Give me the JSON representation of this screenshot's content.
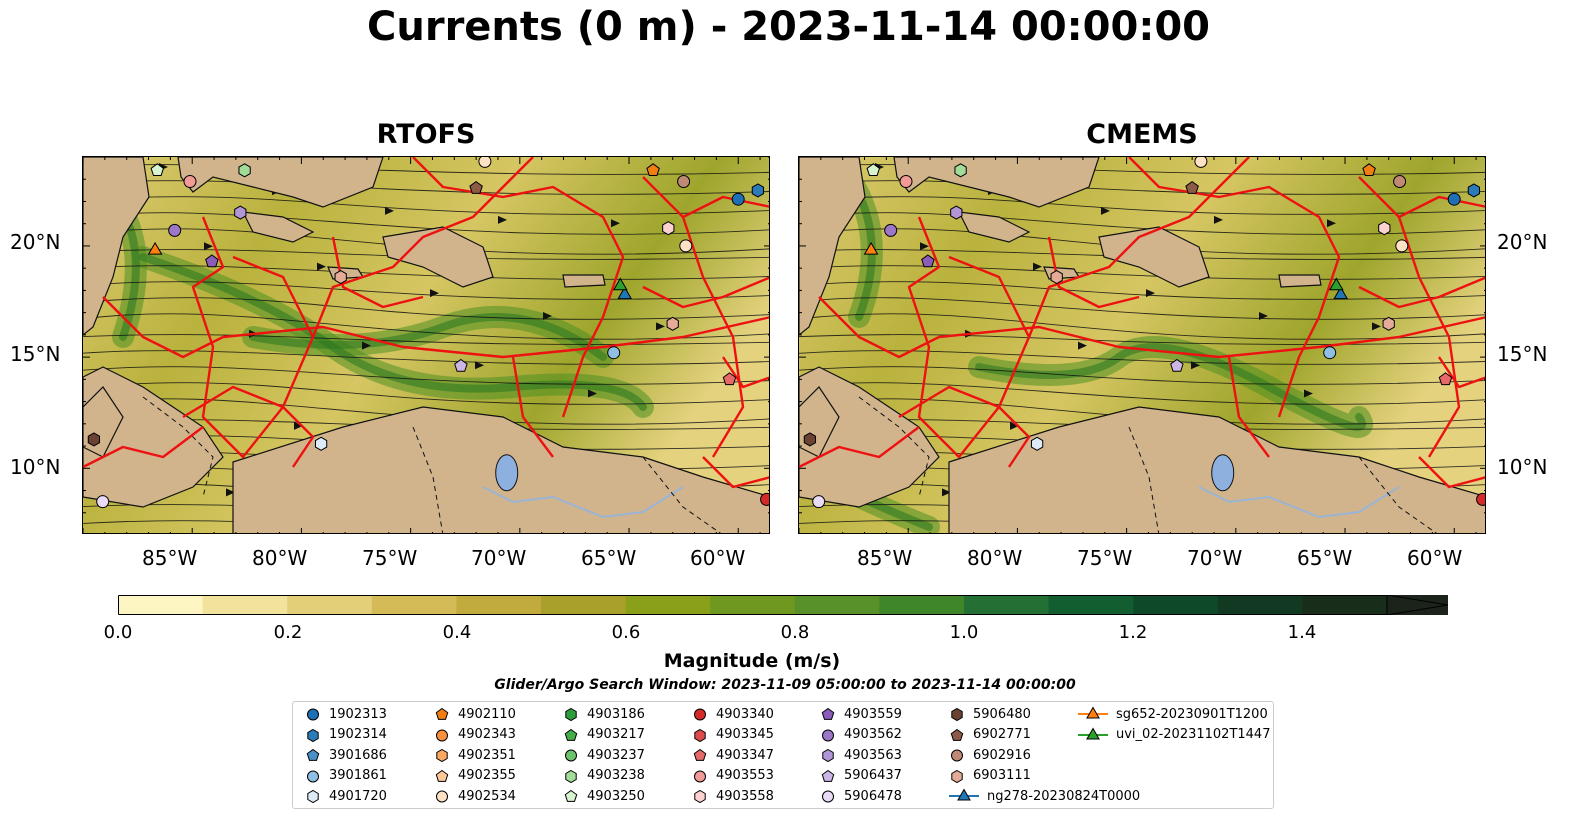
{
  "title": "Currents (0 m) - 2023-11-14 00:00:00",
  "panels": [
    {
      "title": "RTOFS"
    },
    {
      "title": "CMEMS"
    }
  ],
  "lat_ticks": [
    "20°N",
    "15°N",
    "10°N"
  ],
  "lon_ticks": [
    "85°W",
    "80°W",
    "75°W",
    "70°W",
    "65°W",
    "60°W"
  ],
  "colorbar": {
    "label": "Magnitude (m/s)",
    "ticks": [
      "0.0",
      "0.2",
      "0.4",
      "0.6",
      "0.8",
      "1.0",
      "1.2",
      "1.4"
    ],
    "colors": [
      "#fdf6c3",
      "#f2e39c",
      "#e3cf78",
      "#d4bb57",
      "#c2ab3e",
      "#a8a02a",
      "#8aa01b",
      "#6f9820",
      "#58902a",
      "#3f852a",
      "#236f34",
      "#135e30",
      "#0e4a2a",
      "#123a22",
      "#182d1a",
      "#1b231a"
    ]
  },
  "search_window": "Glider/Argo Search Window: 2023-11-09 05:00:00 to 2023-11-14 00:00:00",
  "legend": [
    {
      "label": "1902313",
      "marker": "circle",
      "color": "#1f6fb4"
    },
    {
      "label": "1902314",
      "marker": "hexagon",
      "color": "#2b7bb9"
    },
    {
      "label": "3901686",
      "marker": "pentagon",
      "color": "#4a90c8"
    },
    {
      "label": "3901861",
      "marker": "circle",
      "color": "#8fc0e3"
    },
    {
      "label": "4901720",
      "marker": "hexagon",
      "color": "#dcebf7"
    },
    {
      "label": "4902110",
      "marker": "pentagon",
      "color": "#f07e12"
    },
    {
      "label": "4902343",
      "marker": "circle",
      "color": "#f8913a"
    },
    {
      "label": "4902351",
      "marker": "hexagon",
      "color": "#fca860"
    },
    {
      "label": "4902355",
      "marker": "pentagon",
      "color": "#fdc896"
    },
    {
      "label": "4902534",
      "marker": "circle",
      "color": "#fde2c6"
    },
    {
      "label": "4903186",
      "marker": "hexagon",
      "color": "#2e9e3a"
    },
    {
      "label": "4903217",
      "marker": "pentagon",
      "color": "#44ad49"
    },
    {
      "label": "4903237",
      "marker": "circle",
      "color": "#6cc36b"
    },
    {
      "label": "4903238",
      "marker": "hexagon",
      "color": "#a3dc98"
    },
    {
      "label": "4903250",
      "marker": "pentagon",
      "color": "#d8f3cf"
    },
    {
      "label": "4903340",
      "marker": "circle",
      "color": "#d42a2a"
    },
    {
      "label": "4903345",
      "marker": "hexagon",
      "color": "#dd4a4a"
    },
    {
      "label": "4903347",
      "marker": "pentagon",
      "color": "#e76868"
    },
    {
      "label": "4903553",
      "marker": "circle",
      "color": "#f29a96"
    },
    {
      "label": "4903558",
      "marker": "hexagon",
      "color": "#fbd2cf"
    },
    {
      "label": "4903559",
      "marker": "pentagon",
      "color": "#8b5cb8"
    },
    {
      "label": "4903562",
      "marker": "circle",
      "color": "#9d77c7"
    },
    {
      "label": "4903563",
      "marker": "hexagon",
      "color": "#b295d6"
    },
    {
      "label": "5906437",
      "marker": "pentagon",
      "color": "#cbb6e6"
    },
    {
      "label": "5906478",
      "marker": "circle",
      "color": "#e9dbf6"
    },
    {
      "label": "5906480",
      "marker": "hexagon",
      "color": "#6b4231"
    },
    {
      "label": "6902771",
      "marker": "pentagon",
      "color": "#8c5a46"
    },
    {
      "label": "6902916",
      "marker": "circle",
      "color": "#bf8975"
    },
    {
      "label": "6903111",
      "marker": "hexagon",
      "color": "#e6ab98"
    },
    {
      "label": "ng278-20230824T0000",
      "marker": "triangle-line",
      "color": "#1f77b4"
    },
    {
      "label": "sg652-20230901T1200",
      "marker": "triangle-line",
      "color": "#ff7f0e"
    },
    {
      "label": "uvi_02-20231102T1447",
      "marker": "triangle-line",
      "color": "#2ca02c"
    }
  ],
  "map_extent": {
    "lon_min": -89.5,
    "lon_max": -58.0,
    "lat_min": 7.0,
    "lat_max": 24.0
  },
  "floats": [
    {
      "id": "4903250",
      "lon": -86.1,
      "lat": 23.4
    },
    {
      "id": "4903553",
      "lon": -84.6,
      "lat": 22.9
    },
    {
      "id": "4903238",
      "lon": -82.1,
      "lat": 23.4
    },
    {
      "id": "4902534",
      "lon": -71.1,
      "lat": 23.8
    },
    {
      "id": "4902110",
      "lon": -63.4,
      "lat": 23.4
    },
    {
      "id": "6902916",
      "lon": -62.0,
      "lat": 22.9
    },
    {
      "id": "1902313",
      "lon": -59.5,
      "lat": 22.1
    },
    {
      "id": "1902314",
      "lon": -58.6,
      "lat": 22.5
    },
    {
      "id": "6902771",
      "lon": -71.5,
      "lat": 22.6
    },
    {
      "id": "4903562",
      "lon": -85.3,
      "lat": 20.7
    },
    {
      "id": "4903563",
      "lon": -82.3,
      "lat": 21.5
    },
    {
      "id": "4903559",
      "lon": -83.6,
      "lat": 19.3
    },
    {
      "id": "4903558",
      "lon": -62.7,
      "lat": 20.8
    },
    {
      "id": "4902534",
      "lon": -61.9,
      "lat": 20.0
    },
    {
      "id": "6903111",
      "lon": -77.7,
      "lat": 18.6
    },
    {
      "id": "6903111",
      "lon": -62.5,
      "lat": 16.5
    },
    {
      "id": "3901861",
      "lon": -65.2,
      "lat": 15.2
    },
    {
      "id": "5906437",
      "lon": -72.2,
      "lat": 14.6
    },
    {
      "id": "4903347",
      "lon": -59.9,
      "lat": 14.0
    },
    {
      "id": "4901720",
      "lon": -78.6,
      "lat": 11.1
    },
    {
      "id": "5906480",
      "lon": -89.0,
      "lat": 11.3
    },
    {
      "id": "5906478",
      "lon": -88.6,
      "lat": 8.5
    },
    {
      "id": "4903340",
      "lon": -58.2,
      "lat": 8.6
    }
  ],
  "gliders": [
    {
      "id": "sg652-20230901T1200",
      "lon": -86.2,
      "lat": 19.8
    },
    {
      "id": "ng278-20230824T0000",
      "lon": -64.7,
      "lat": 17.8
    },
    {
      "id": "uvi_02-20231102T1447",
      "lon": -64.9,
      "lat": 18.2
    }
  ]
}
